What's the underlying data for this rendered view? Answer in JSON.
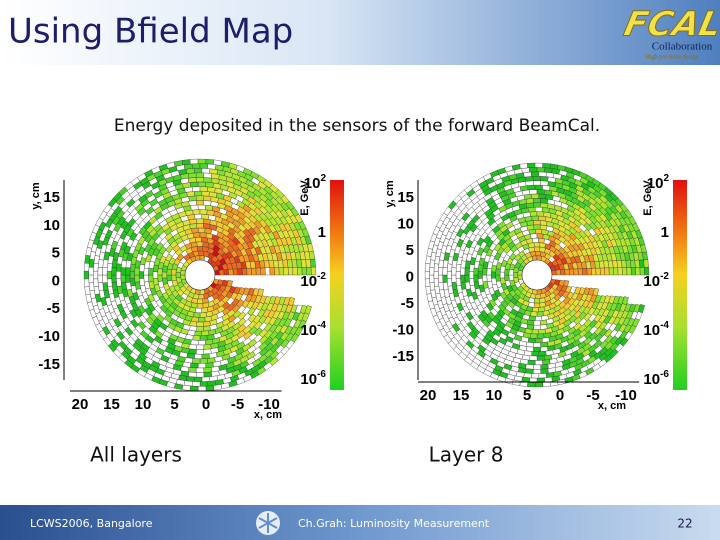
{
  "header": {
    "title": "Using Bfield Map",
    "logo": {
      "mark": "FCAL",
      "text": "Collaboration",
      "subtext": "High precision design"
    }
  },
  "subtitle": "Energy deposited in the sensors of the forward BeamCal.",
  "plots": [
    {
      "caption": "All layers",
      "y_axis_label": "y, cm",
      "x_axis_label": "x, cm",
      "colorbar_label": "E, GeV",
      "yticks": [
        "15",
        "10",
        "5",
        "0",
        "-5",
        "-10",
        "-15"
      ],
      "xticks": [
        "20",
        "15",
        "10",
        "5",
        "0",
        "-5",
        "-10"
      ],
      "colorbar_ticks": [
        {
          "base": "10",
          "exponent": "2"
        },
        {
          "base": "1"
        },
        {
          "base": "10",
          "exponent": "-2"
        },
        {
          "base": "10",
          "exponent": "-4"
        },
        {
          "base": "10",
          "exponent": "-6"
        }
      ]
    },
    {
      "caption": "Layer 8",
      "y_axis_label": "y, cm",
      "x_axis_label": "x, cm",
      "colorbar_label": "E, GeV",
      "yticks": [
        "15",
        "10",
        "5",
        "0",
        "-5",
        "-10",
        "-15"
      ],
      "xticks": [
        "20",
        "15",
        "10",
        "5",
        "0",
        "-5",
        "-10"
      ],
      "colorbar_ticks": [
        {
          "base": "10",
          "exponent": "2"
        },
        {
          "base": "1"
        },
        {
          "base": "10",
          "exponent": "-2"
        },
        {
          "base": "10",
          "exponent": "-4"
        },
        {
          "base": "10",
          "exponent": "-6"
        }
      ]
    }
  ],
  "footer": {
    "left": "LCWS2006, Bangalore",
    "center": "Ch.Grah: Luminosity Measurement",
    "page": "22"
  }
}
